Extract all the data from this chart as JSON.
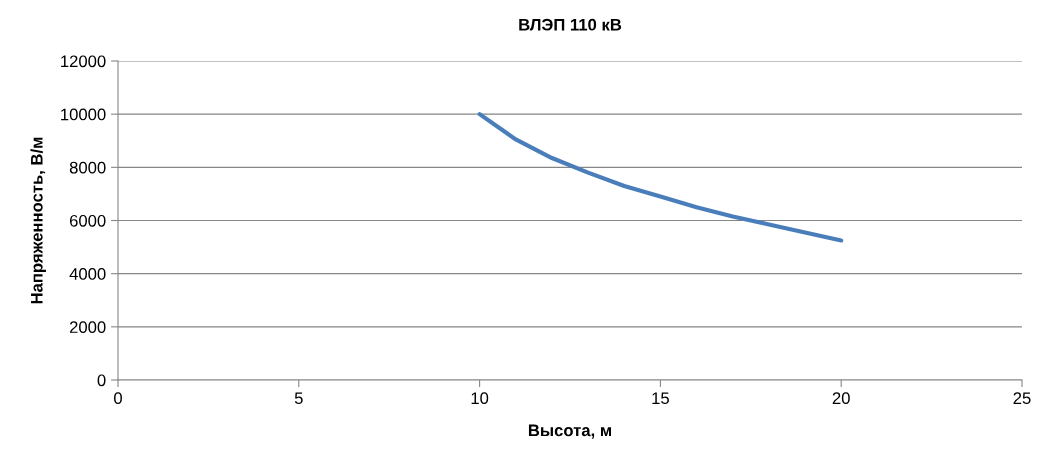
{
  "chart_data": {
    "type": "line",
    "title": "ВЛЭП 110 кВ",
    "xlabel": "Высота, м",
    "ylabel": "Напряженность, В/м",
    "x": [
      10,
      11,
      12,
      13,
      14,
      15,
      16,
      17,
      18,
      19,
      20
    ],
    "series": [
      {
        "color": "#4a7ebb",
        "values": [
          10000,
          9050,
          8350,
          7800,
          7300,
          6900,
          6500,
          6150,
          5850,
          5550,
          5250
        ]
      }
    ],
    "xlim": [
      0,
      25
    ],
    "xticks": [
      0,
      5,
      10,
      15,
      20,
      25
    ],
    "ylim": [
      0,
      12000
    ],
    "yticks": [
      0,
      2000,
      4000,
      6000,
      8000,
      10000,
      12000
    ],
    "grid": "y",
    "legend": false,
    "marker": "none",
    "line_style": "solid"
  }
}
